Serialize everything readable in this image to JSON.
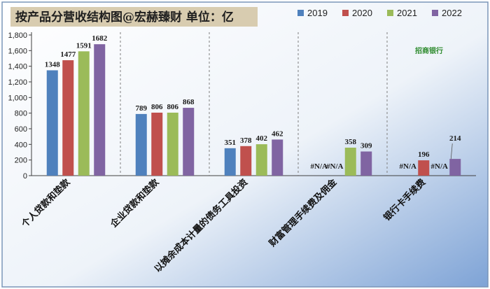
{
  "chart_data": {
    "type": "bar",
    "title": "按产品分营收结构图@宏赫臻财  单位：亿",
    "watermark": "招商银行",
    "categories": [
      "个人贷款和垫款",
      "企业贷款和垫款",
      "以摊余成本计量的债务工具投资",
      "财富管理手续费及佣金",
      "银行卡手续费"
    ],
    "series": [
      {
        "name": "2019",
        "color": "#4f81bd",
        "values": [
          1348,
          789,
          351,
          null,
          null
        ],
        "labels": [
          "1348",
          "789",
          "351",
          "#N/A",
          "#N/A"
        ]
      },
      {
        "name": "2020",
        "color": "#c0504d",
        "values": [
          1477,
          806,
          378,
          null,
          196
        ],
        "labels": [
          "1477",
          "806",
          "378",
          "#N/A",
          "196"
        ]
      },
      {
        "name": "2021",
        "color": "#9bbb59",
        "values": [
          1591,
          806,
          402,
          358,
          null
        ],
        "labels": [
          "1591",
          "806",
          "402",
          "358",
          "#N/A"
        ]
      },
      {
        "name": "2022",
        "color": "#8064a2",
        "values": [
          1682,
          868,
          462,
          309,
          214
        ],
        "labels": [
          "1682",
          "868",
          "462",
          "309",
          "214"
        ]
      }
    ],
    "yticks": [
      "0",
      "200",
      "400",
      "600",
      "800",
      "1,000",
      "1,200",
      "1,400",
      "1,600",
      "1,800"
    ],
    "ylim": [
      0,
      1800
    ],
    "xlabel": "",
    "ylabel": "",
    "grid": false,
    "legend": "top-right"
  }
}
